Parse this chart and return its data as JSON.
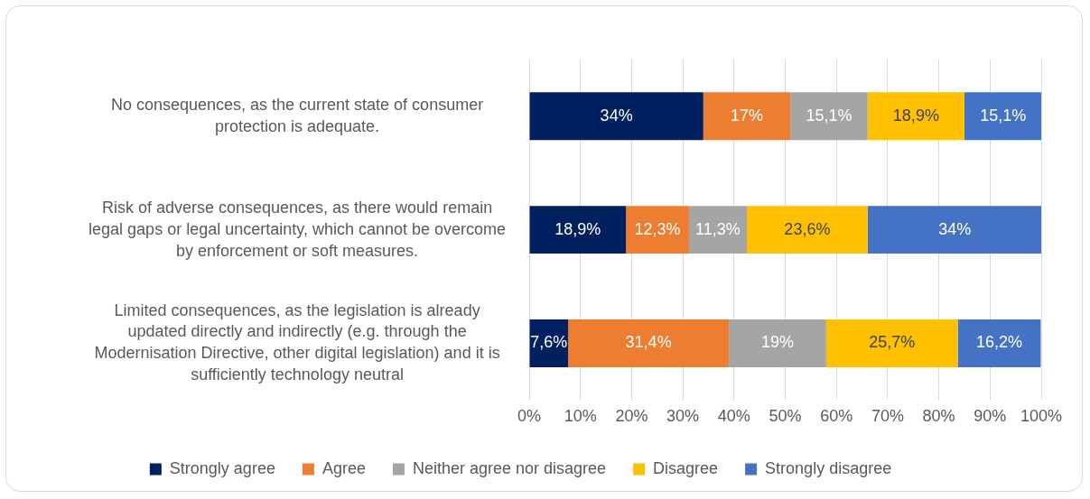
{
  "chart_data": {
    "type": "bar",
    "orientation": "horizontal",
    "stacked": true,
    "categories": [
      "No consequences, as the current state of consumer protection is adequate.",
      "Risk of adverse consequences, as there would remain legal gaps or legal uncertainty, which cannot be overcome by enforcement or soft measures.",
      "Limited consequences, as the legislation is already updated directly and indirectly (e.g. through the Modernisation Directive, other digital legislation) and it is sufficiently technology neutral"
    ],
    "series": [
      {
        "name": "Strongly agree",
        "color": "#002060",
        "values": [
          34,
          18.9,
          7.6
        ],
        "value_labels": [
          "34%",
          "18,9%",
          "7,6%"
        ]
      },
      {
        "name": "Agree",
        "color": "#ed7d31",
        "values": [
          17,
          12.3,
          31.4
        ],
        "value_labels": [
          "17%",
          "12,3%",
          "31,4%"
        ]
      },
      {
        "name": "Neither agree nor disagree",
        "color": "#a5a5a5",
        "values": [
          15.1,
          11.3,
          19
        ],
        "value_labels": [
          "15,1%",
          "11,3%",
          "19%"
        ]
      },
      {
        "name": "Disagree",
        "color": "#ffc000",
        "values": [
          18.9,
          23.6,
          25.7
        ],
        "value_labels": [
          "18,9%",
          "23,6%",
          "25,7%"
        ]
      },
      {
        "name": "Strongly disagree",
        "color": "#4472c4",
        "values": [
          15.1,
          34,
          16.2
        ],
        "value_labels": [
          "15,1%",
          "34%",
          "16,2%"
        ]
      }
    ],
    "xlim": [
      0,
      100
    ],
    "xticks": [
      {
        "value": 0,
        "label": "0%"
      },
      {
        "value": 10,
        "label": "10%"
      },
      {
        "value": 20,
        "label": "20%"
      },
      {
        "value": 30,
        "label": "30%"
      },
      {
        "value": 40,
        "label": "40%"
      },
      {
        "value": 50,
        "label": "50%"
      },
      {
        "value": 60,
        "label": "60%"
      },
      {
        "value": 70,
        "label": "70%"
      },
      {
        "value": 80,
        "label": "80%"
      },
      {
        "value": 90,
        "label": "90%"
      },
      {
        "value": 100,
        "label": "100%"
      }
    ],
    "grid": "x",
    "legend": "bottom"
  }
}
